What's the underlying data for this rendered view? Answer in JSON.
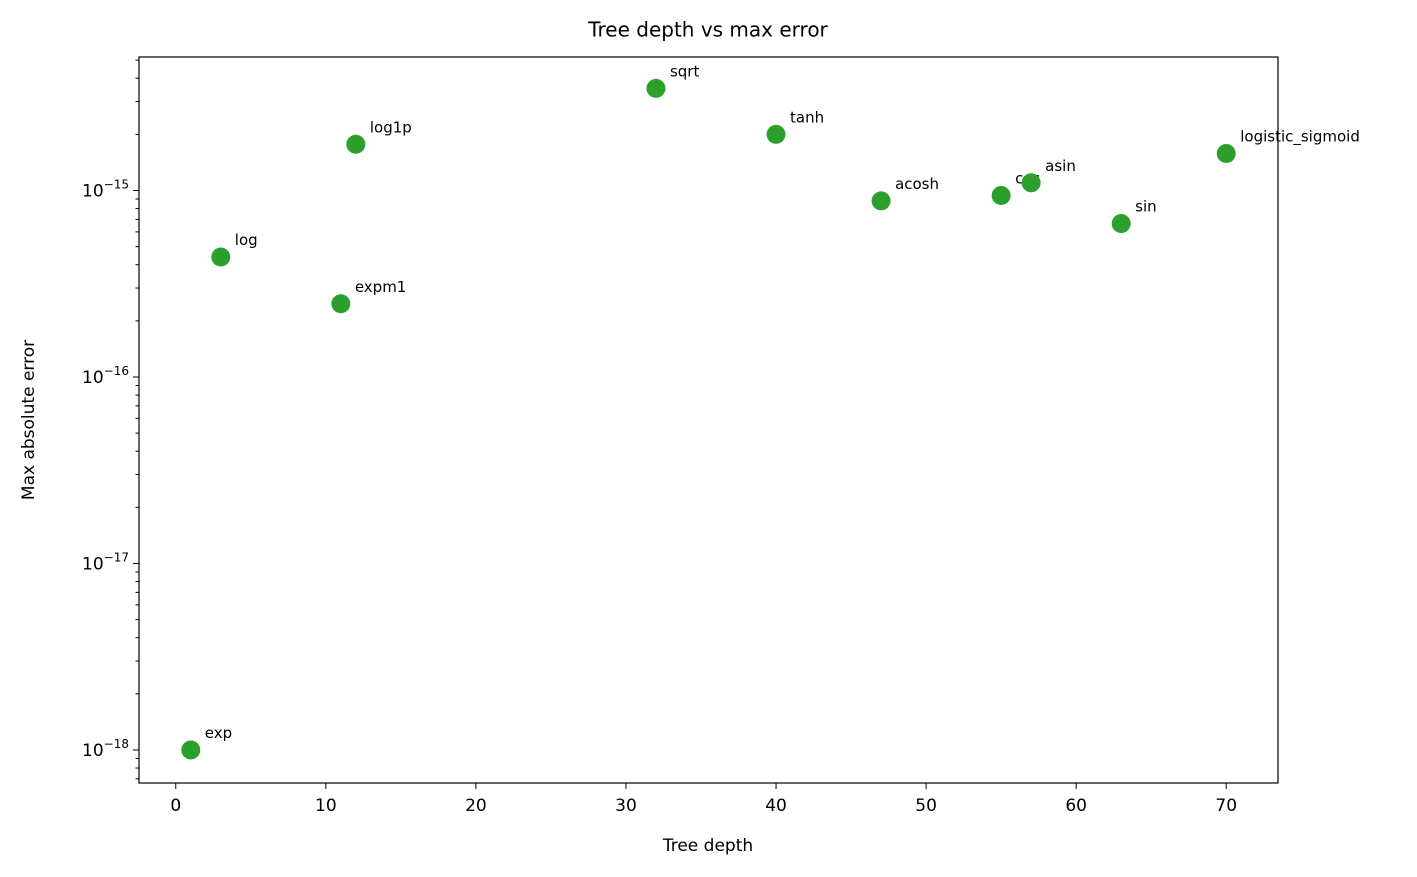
{
  "chart_data": {
    "type": "scatter",
    "title": "Tree depth vs max error",
    "x_label": "Tree depth",
    "y_label": "Max absolute error",
    "color": "#2ca02c",
    "log_y": true,
    "grid": false,
    "series": [
      {
        "labels": [
          "exp",
          "log",
          "expm1",
          "log1p",
          "sqrt",
          "tanh",
          "acosh",
          "cos",
          "asin",
          "sin",
          "logistic_sigmoid"
        ],
        "x": [
          1,
          3,
          11,
          12,
          32,
          40,
          47,
          55,
          57,
          63,
          70
        ],
        "values": [
          1e-18,
          4.4e-16,
          2.47e-16,
          1.77e-15,
          3.53e-15,
          2e-15,
          8.8e-16,
          9.4e-16,
          1.1e-15,
          6.65e-16,
          1.58e-15
        ]
      }
    ],
    "xlim": [
      -2.45,
      73.45
    ],
    "xticks": [
      0,
      10,
      20,
      30,
      40,
      50,
      60,
      70
    ],
    "ylim": [
      6.65e-19,
      5.2e-15
    ],
    "yticks": [
      {
        "value": 1e-18,
        "label": "10^−18"
      },
      {
        "value": 1e-17,
        "label": "10^−17"
      },
      {
        "value": 1e-16,
        "label": "10^−16"
      },
      {
        "value": 1e-15,
        "label": "10^−15"
      }
    ],
    "yminorticks": [
      7e-19,
      8e-19,
      9e-19,
      2e-18,
      3e-18,
      4e-18,
      5e-18,
      6e-18,
      7e-18,
      8e-18,
      9e-18,
      2e-17,
      3e-17,
      4e-17,
      5e-17,
      6e-17,
      7e-17,
      8e-17,
      9e-17,
      2e-16,
      3e-16,
      4e-16,
      5e-16,
      6e-16,
      7e-16,
      8e-16,
      9e-16,
      2e-15,
      3e-15,
      4e-15,
      5e-15
    ]
  }
}
